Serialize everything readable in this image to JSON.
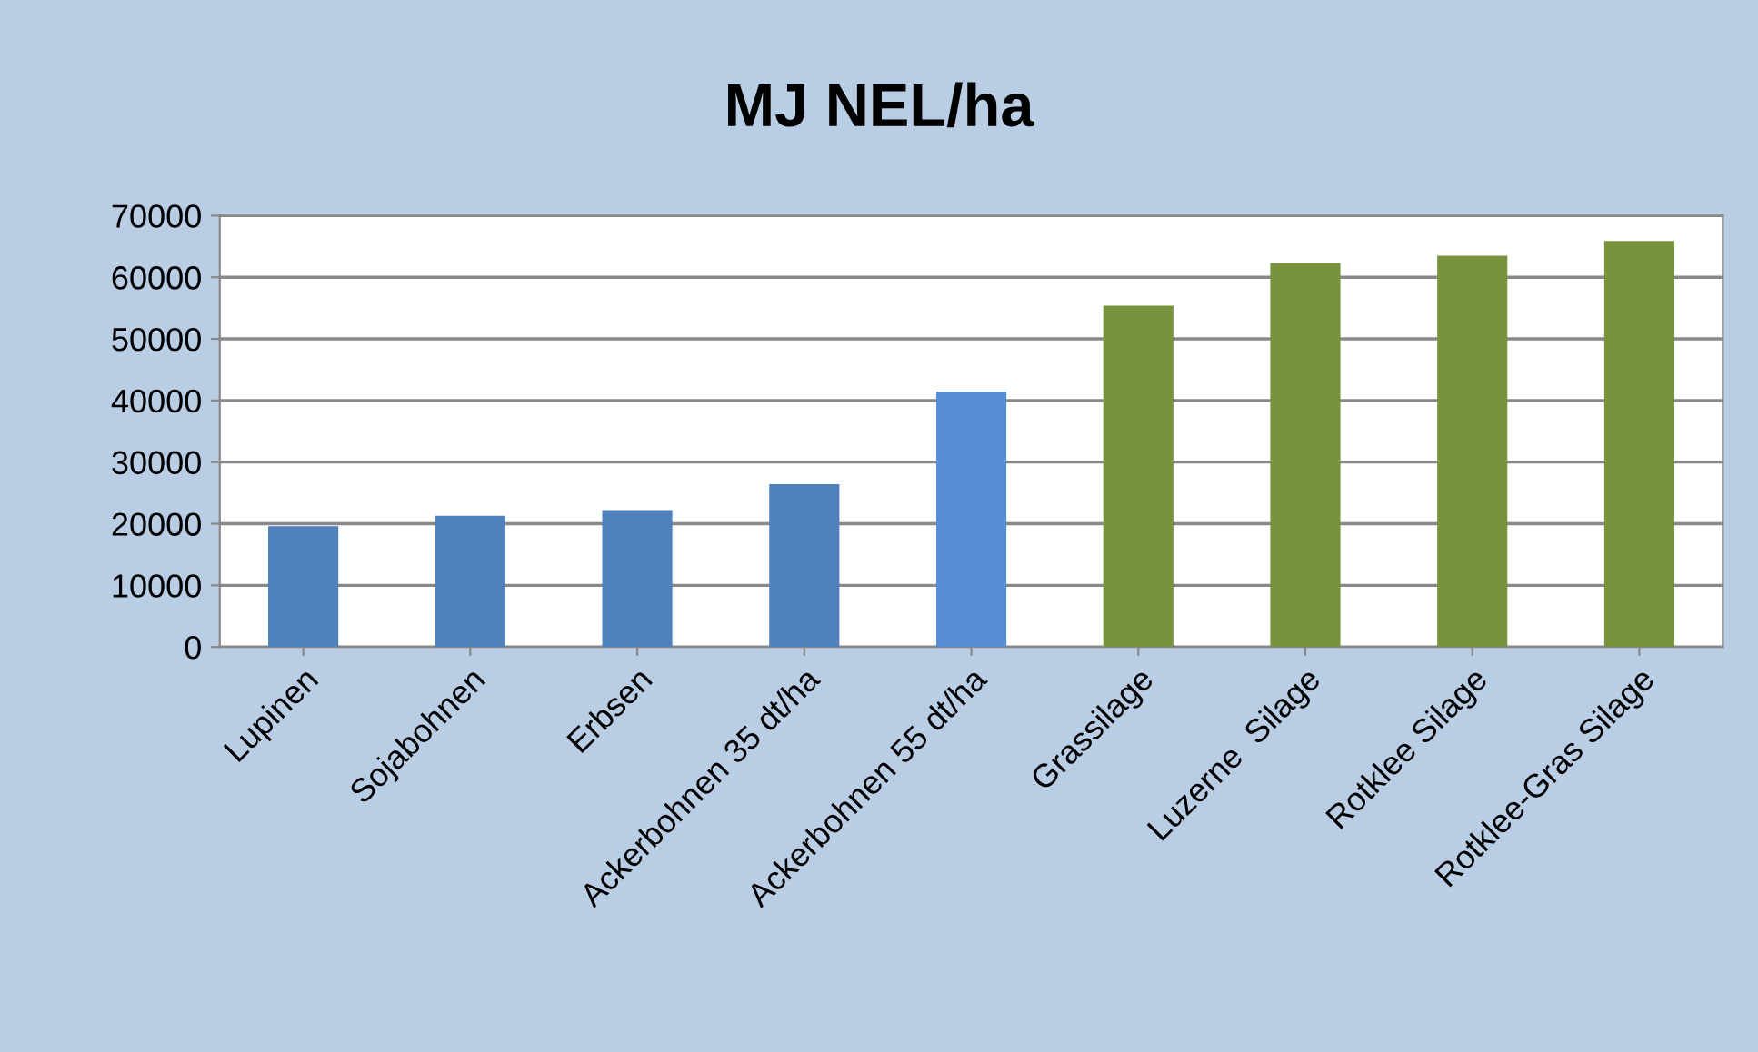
{
  "chart_data": {
    "type": "bar",
    "title": "MJ NEL/ha",
    "categories": [
      "Lupinen",
      "Sojabohnen",
      "Erbsen",
      "Ackerbohnen 35 dt/ha",
      "Ackerbohnen 55 dt/ha",
      "Grassilage",
      "Luzerne  Silage",
      "Rotklee Silage",
      "Rotklee-Gras Silage"
    ],
    "values": [
      19600,
      21300,
      22200,
      26400,
      41400,
      55400,
      62300,
      63500,
      65900
    ],
    "colors": [
      "#4f81bd",
      "#4f81bd",
      "#4f81bd",
      "#4f81bd",
      "#558ed5",
      "#77933c",
      "#77933c",
      "#77933c",
      "#77933c"
    ],
    "ylim": [
      0,
      70000
    ],
    "yticks": [
      0,
      10000,
      20000,
      30000,
      40000,
      50000,
      60000,
      70000
    ],
    "grid": "y",
    "legend": false
  }
}
